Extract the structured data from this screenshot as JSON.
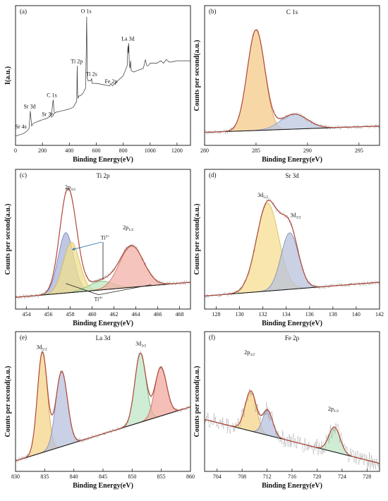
{
  "chart_data": [
    {
      "id": "a",
      "type": "line",
      "panel_label": "(a)",
      "title": "",
      "xlabel": "Binding Energy(eV)",
      "ylabel": "I(a.u.)",
      "xlim": [
        0,
        1300
      ],
      "xticks": [
        0,
        200,
        400,
        600,
        800,
        1000,
        1200
      ],
      "xreverse": false,
      "ylim": [
        0,
        1
      ],
      "show_yticks": false,
      "grid": false,
      "series": [
        {
          "color": "#333333",
          "width": 0.7,
          "x": [
            0,
            30,
            60,
            85,
            100,
            110,
            120,
            130,
            150,
            175,
            200,
            230,
            260,
            270,
            280,
            285,
            290,
            300,
            340,
            380,
            410,
            430,
            445,
            455,
            458,
            462,
            465,
            470,
            480,
            500,
            520,
            525,
            529,
            533,
            540,
            560,
            565,
            570,
            600,
            650,
            700,
            710,
            720,
            750,
            800,
            830,
            835,
            838,
            842,
            845,
            850,
            855,
            860,
            880,
            900,
            950,
            965,
            975,
            985,
            1000,
            1050,
            1080,
            1100,
            1120,
            1140,
            1160,
            1200,
            1250,
            1300
          ],
          "y": [
            0.04,
            0.05,
            0.06,
            0.08,
            0.1,
            0.24,
            0.12,
            0.14,
            0.15,
            0.16,
            0.17,
            0.18,
            0.2,
            0.24,
            0.33,
            0.25,
            0.22,
            0.23,
            0.24,
            0.25,
            0.26,
            0.27,
            0.3,
            0.32,
            0.6,
            0.36,
            0.34,
            0.36,
            0.36,
            0.38,
            0.42,
            0.7,
            0.99,
            0.5,
            0.48,
            0.48,
            0.5,
            0.46,
            0.46,
            0.45,
            0.44,
            0.46,
            0.44,
            0.47,
            0.52,
            0.6,
            0.76,
            0.7,
            0.78,
            0.62,
            0.58,
            0.64,
            0.56,
            0.55,
            0.56,
            0.58,
            0.65,
            0.6,
            0.6,
            0.62,
            0.62,
            0.64,
            0.62,
            0.65,
            0.63,
            0.63,
            0.64,
            0.64,
            0.64
          ]
        }
      ],
      "annotations": [
        {
          "text": "O 1s",
          "x": 525,
          "y": 1.02
        },
        {
          "text": "Ti 2p",
          "x": 455,
          "y": 0.62
        },
        {
          "text": "Ti 2s",
          "x": 565,
          "y": 0.52
        },
        {
          "text": "La 3d",
          "x": 835,
          "y": 0.8
        },
        {
          "text": "Fe 2p",
          "x": 710,
          "y": 0.46
        },
        {
          "text": "C 1s",
          "x": 270,
          "y": 0.35
        },
        {
          "text": "Sr 3d",
          "x": 105,
          "y": 0.26
        },
        {
          "text": "Sr 3p",
          "x": 240,
          "y": 0.2
        },
        {
          "text": "Sr 4s",
          "x": 40,
          "y": 0.1
        }
      ]
    },
    {
      "id": "b",
      "type": "line",
      "panel_label": "(b)",
      "title": "C 1s",
      "xlabel": "Binding Energy(eV)",
      "ylabel": "Counts per second(a.u.)",
      "xlim": [
        280,
        297
      ],
      "xticks": [
        280,
        285,
        290,
        295
      ],
      "xreverse": false,
      "ylim": [
        0,
        1
      ],
      "show_yticks": false,
      "grid": false,
      "background": {
        "x": [
          280,
          297
        ],
        "y": [
          0.07,
          0.12
        ]
      },
      "peaks": [
        {
          "center": 285.0,
          "height": 0.8,
          "width": 0.85,
          "fill": "#f6c98a",
          "stroke": "#e0a050"
        },
        {
          "center": 288.7,
          "height": 0.12,
          "width": 1.3,
          "fill": "#bcc8e2",
          "stroke": "#8899c0"
        }
      ],
      "envelope_color": "#b04a3a",
      "raw_color": "#888888",
      "annotations": []
    },
    {
      "id": "c",
      "type": "line",
      "panel_label": "(c)",
      "title": "Ti 2p",
      "xlabel": "Binding Energy(eV)",
      "ylabel": "Counts per second(a.u.)",
      "xlim": [
        453,
        469
      ],
      "xticks": [
        454,
        456,
        458,
        460,
        462,
        464,
        466,
        468
      ],
      "xreverse": false,
      "ylim": [
        0,
        1
      ],
      "show_yticks": false,
      "grid": false,
      "background": {
        "x": [
          453,
          469
        ],
        "y": [
          0.06,
          0.18
        ]
      },
      "peaks": [
        {
          "center": 457.6,
          "height": 0.48,
          "width": 0.7,
          "fill": "#aab4dc",
          "stroke": "#7080b8"
        },
        {
          "center": 458.1,
          "height": 0.4,
          "width": 0.75,
          "fill": "#f0dd8c",
          "stroke": "#d4b84a"
        },
        {
          "center": 460.8,
          "height": 0.07,
          "width": 1.1,
          "fill": "#bfe6bf",
          "stroke": "#77b877"
        },
        {
          "center": 463.6,
          "height": 0.33,
          "width": 1.1,
          "fill": "#f2b0a6",
          "stroke": "#d06a5a"
        }
      ],
      "envelope_color": "#b04a3a",
      "raw_color": "#888888",
      "annotations": [
        {
          "text": "2p",
          "sub": "3/2",
          "x": 458,
          "y": 0.92
        },
        {
          "text": "2p",
          "sub": "1/2",
          "x": 463.3,
          "y": 0.6
        },
        {
          "text": "Ti",
          "sup": "3+",
          "x": 461.2,
          "y": 0.52
        },
        {
          "text": "Ti",
          "sup": "4+",
          "x": 460.6,
          "y": 0.03
        }
      ]
    },
    {
      "id": "d",
      "type": "line",
      "panel_label": "(d)",
      "title": "Sr 3d",
      "xlabel": "Binding Energy(eV)",
      "ylabel": "Counts per second(a.u.)",
      "xlim": [
        127,
        142
      ],
      "xticks": [
        128,
        130,
        132,
        134,
        136,
        138,
        140,
        142
      ],
      "xreverse": false,
      "ylim": [
        0,
        1
      ],
      "show_yticks": false,
      "grid": false,
      "background": {
        "x": [
          127,
          142
        ],
        "y": [
          0.07,
          0.18
        ]
      },
      "peaks": [
        {
          "center": 132.4,
          "height": 0.7,
          "width": 0.95,
          "fill": "#f6dd92",
          "stroke": "#d4b84a"
        },
        {
          "center": 134.3,
          "height": 0.45,
          "width": 0.75,
          "fill": "#b8c2dc",
          "stroke": "#7a88b8"
        }
      ],
      "envelope_color": "#b04a3a",
      "raw_color": "#888888",
      "annotations": [
        {
          "text": "3d",
          "sub": "5/2",
          "x": 132.0,
          "y": 0.86
        },
        {
          "text": "3d",
          "sub": "3/2",
          "x": 134.8,
          "y": 0.7
        }
      ]
    },
    {
      "id": "e",
      "type": "line",
      "panel_label": "(e)",
      "title": "La 3d",
      "xlabel": "Binding Energy(eV)",
      "ylabel": "Counts per second(a.u.)",
      "xlim": [
        830,
        860
      ],
      "xticks": [
        830,
        835,
        840,
        845,
        850,
        855,
        860
      ],
      "xreverse": false,
      "ylim": [
        0,
        1
      ],
      "show_yticks": false,
      "grid": false,
      "background": {
        "x": [
          830,
          860
        ],
        "y": [
          0.05,
          0.48
        ]
      },
      "peaks": [
        {
          "center": 834.6,
          "height": 0.8,
          "width": 0.85,
          "fill": "#f6d48a",
          "stroke": "#d4a040"
        },
        {
          "center": 837.9,
          "height": 0.6,
          "width": 1.0,
          "fill": "#b8c0dc",
          "stroke": "#7a88b8"
        },
        {
          "center": 851.4,
          "height": 0.55,
          "width": 0.95,
          "fill": "#bfe6c6",
          "stroke": "#5fa86f"
        },
        {
          "center": 854.9,
          "height": 0.39,
          "width": 1.0,
          "fill": "#f2aaa0",
          "stroke": "#c86050"
        }
      ],
      "envelope_color": "#b04a3a",
      "raw_color": "#888888",
      "annotations": [
        {
          "text": "3d",
          "sub": "5/2",
          "x": 834.5,
          "y": 0.94
        },
        {
          "text": "3d",
          "sub": "3/2",
          "x": 851.5,
          "y": 0.97
        }
      ]
    },
    {
      "id": "f",
      "type": "line",
      "panel_label": "(f)",
      "title": "Fe 2p",
      "xlabel": "Binding Energy(eV)",
      "ylabel": "Counts per second(a.u.)",
      "xlim": [
        702,
        730
      ],
      "xticks": [
        704,
        708,
        712,
        716,
        720,
        724,
        728
      ],
      "xreverse": false,
      "ylim": [
        0,
        1
      ],
      "show_yticks": false,
      "grid": false,
      "background": {
        "x": [
          702,
          730
        ],
        "y": [
          0.38,
          0.03
        ]
      },
      "peaks": [
        {
          "center": 709.4,
          "height": 0.32,
          "width": 0.9,
          "fill": "#f6d48a",
          "stroke": "#d4a040"
        },
        {
          "center": 712.1,
          "height": 0.2,
          "width": 0.8,
          "fill": "#b8c0dc",
          "stroke": "#7a88b8"
        },
        {
          "center": 722.8,
          "height": 0.2,
          "width": 0.9,
          "fill": "#bfe6c6",
          "stroke": "#5fa86f"
        }
      ],
      "envelope_color": "#b04a3a",
      "raw_color": "#888888",
      "raw_noise": 0.07,
      "annotations": [
        {
          "text": "2p",
          "sub": "3/2",
          "x": 709.2,
          "y": 0.9
        },
        {
          "text": "2p",
          "sub": "1/2",
          "x": 722.6,
          "y": 0.45
        }
      ]
    }
  ]
}
